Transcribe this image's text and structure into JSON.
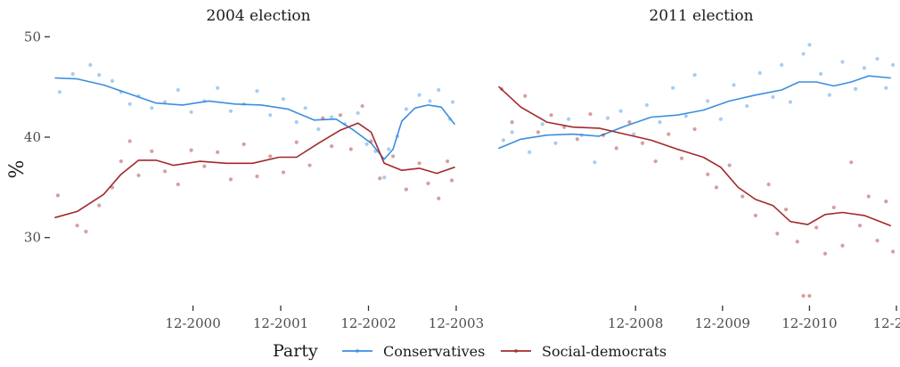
{
  "chart_data": {
    "type": "scatter",
    "ylabel": "%",
    "ylim": [
      23.5,
      51
    ],
    "y_ticks": [
      {
        "label": "50",
        "value": 50
      },
      {
        "label": "40",
        "value": 40
      },
      {
        "label": "30",
        "value": 30
      }
    ],
    "facets": [
      {
        "title": "2004 election",
        "xlim": [
          1999.35,
          2003.9
        ],
        "x_ticks": [
          {
            "label": "12-2000",
            "value": 2000.92
          },
          {
            "label": "12-2001",
            "value": 2001.92
          },
          {
            "label": "12-2002",
            "value": 2002.92
          },
          {
            "label": "12-2003",
            "value": 2003.92
          }
        ],
        "series": [
          {
            "name": "Conservatives",
            "trend": [
              [
                1999.35,
                45.9
              ],
              [
                1999.6,
                45.8
              ],
              [
                1999.9,
                45.2
              ],
              [
                2000.2,
                44.3
              ],
              [
                2000.5,
                43.4
              ],
              [
                2000.8,
                43.2
              ],
              [
                2001.1,
                43.6
              ],
              [
                2001.4,
                43.3
              ],
              [
                2001.7,
                43.2
              ],
              [
                2002.0,
                42.8
              ],
              [
                2002.3,
                41.7
              ],
              [
                2002.55,
                41.8
              ],
              [
                2002.75,
                40.7
              ],
              [
                2002.95,
                39.4
              ],
              [
                2003.1,
                37.8
              ],
              [
                2003.2,
                38.8
              ],
              [
                2003.3,
                41.6
              ],
              [
                2003.45,
                42.9
              ],
              [
                2003.6,
                43.2
              ],
              [
                2003.75,
                43.0
              ],
              [
                2003.9,
                41.3
              ]
            ],
            "points": [
              [
                1999.4,
                44.5
              ],
              [
                1999.55,
                46.3
              ],
              [
                1999.75,
                47.2
              ],
              [
                1999.85,
                46.2
              ],
              [
                2000.0,
                45.6
              ],
              [
                2000.1,
                44.5
              ],
              [
                2000.2,
                43.3
              ],
              [
                2000.3,
                44.1
              ],
              [
                2000.45,
                42.9
              ],
              [
                2000.6,
                43.5
              ],
              [
                2000.75,
                44.7
              ],
              [
                2000.9,
                42.5
              ],
              [
                2001.05,
                43.6
              ],
              [
                2001.2,
                44.9
              ],
              [
                2001.35,
                42.6
              ],
              [
                2001.5,
                43.3
              ],
              [
                2001.65,
                44.6
              ],
              [
                2001.8,
                42.2
              ],
              [
                2001.95,
                43.8
              ],
              [
                2002.1,
                41.5
              ],
              [
                2002.2,
                42.9
              ],
              [
                2002.35,
                40.8
              ],
              [
                2002.5,
                42.0
              ],
              [
                2002.65,
                41.3
              ],
              [
                2002.8,
                42.4
              ],
              [
                2002.9,
                39.3
              ],
              [
                2003.0,
                38.6
              ],
              [
                2003.1,
                36.0
              ],
              [
                2003.15,
                38.8
              ],
              [
                2003.25,
                40.1
              ],
              [
                2003.35,
                42.8
              ],
              [
                2003.5,
                44.2
              ],
              [
                2003.62,
                43.6
              ],
              [
                2003.72,
                44.7
              ],
              [
                2003.85,
                41.8
              ],
              [
                2003.88,
                43.5
              ]
            ]
          },
          {
            "name": "Social-democrats",
            "trend": [
              [
                1999.35,
                32.0
              ],
              [
                1999.6,
                32.6
              ],
              [
                1999.9,
                34.3
              ],
              [
                2000.1,
                36.3
              ],
              [
                2000.3,
                37.7
              ],
              [
                2000.5,
                37.7
              ],
              [
                2000.7,
                37.2
              ],
              [
                2001.0,
                37.6
              ],
              [
                2001.3,
                37.4
              ],
              [
                2001.6,
                37.4
              ],
              [
                2001.9,
                38.0
              ],
              [
                2002.1,
                38.0
              ],
              [
                2002.35,
                39.4
              ],
              [
                2002.6,
                40.7
              ],
              [
                2002.8,
                41.4
              ],
              [
                2002.95,
                40.5
              ],
              [
                2003.1,
                37.4
              ],
              [
                2003.3,
                36.7
              ],
              [
                2003.5,
                36.9
              ],
              [
                2003.7,
                36.4
              ],
              [
                2003.9,
                37.0
              ]
            ],
            "points": [
              [
                1999.38,
                34.2
              ],
              [
                1999.6,
                31.2
              ],
              [
                1999.7,
                30.6
              ],
              [
                1999.85,
                33.2
              ],
              [
                2000.0,
                35.0
              ],
              [
                2000.1,
                37.6
              ],
              [
                2000.2,
                39.6
              ],
              [
                2000.3,
                36.2
              ],
              [
                2000.45,
                38.6
              ],
              [
                2000.6,
                36.6
              ],
              [
                2000.75,
                35.3
              ],
              [
                2000.9,
                38.7
              ],
              [
                2001.05,
                37.1
              ],
              [
                2001.2,
                38.5
              ],
              [
                2001.35,
                35.8
              ],
              [
                2001.5,
                39.3
              ],
              [
                2001.65,
                36.1
              ],
              [
                2001.8,
                38.1
              ],
              [
                2001.95,
                36.5
              ],
              [
                2002.1,
                39.5
              ],
              [
                2002.25,
                37.2
              ],
              [
                2002.4,
                41.9
              ],
              [
                2002.5,
                39.1
              ],
              [
                2002.6,
                42.2
              ],
              [
                2002.72,
                38.8
              ],
              [
                2002.85,
                43.1
              ],
              [
                2002.95,
                39.6
              ],
              [
                2003.05,
                35.9
              ],
              [
                2003.2,
                38.1
              ],
              [
                2003.35,
                34.8
              ],
              [
                2003.5,
                37.4
              ],
              [
                2003.6,
                35.4
              ],
              [
                2003.72,
                33.9
              ],
              [
                2003.82,
                37.6
              ],
              [
                2003.87,
                35.7
              ]
            ]
          }
        ]
      },
      {
        "title": "2011 election",
        "xlim": [
          2007.35,
          2011.92
        ],
        "x_ticks": [
          {
            "label": "12-2008",
            "value": 2008.92
          },
          {
            "label": "12-2009",
            "value": 2009.92
          },
          {
            "label": "12-2010",
            "value": 2010.92
          },
          {
            "label": "12-201",
            "value": 2011.92
          }
        ],
        "series": [
          {
            "name": "Conservatives",
            "trend": [
              [
                2007.35,
                38.9
              ],
              [
                2007.6,
                39.8
              ],
              [
                2007.9,
                40.2
              ],
              [
                2008.2,
                40.3
              ],
              [
                2008.5,
                40.1
              ],
              [
                2008.8,
                41.1
              ],
              [
                2009.1,
                42.0
              ],
              [
                2009.4,
                42.2
              ],
              [
                2009.7,
                42.7
              ],
              [
                2010.0,
                43.6
              ],
              [
                2010.3,
                44.2
              ],
              [
                2010.6,
                44.7
              ],
              [
                2010.8,
                45.5
              ],
              [
                2011.0,
                45.5
              ],
              [
                2011.2,
                45.1
              ],
              [
                2011.4,
                45.5
              ],
              [
                2011.6,
                46.1
              ],
              [
                2011.85,
                45.9
              ]
            ],
            "points": [
              [
                2007.4,
                39.7
              ],
              [
                2007.5,
                40.5
              ],
              [
                2007.7,
                38.5
              ],
              [
                2007.85,
                41.3
              ],
              [
                2008.0,
                39.4
              ],
              [
                2008.15,
                41.8
              ],
              [
                2008.3,
                40.2
              ],
              [
                2008.45,
                37.5
              ],
              [
                2008.6,
                41.9
              ],
              [
                2008.75,
                42.6
              ],
              [
                2008.9,
                40.3
              ],
              [
                2009.05,
                43.2
              ],
              [
                2009.2,
                41.5
              ],
              [
                2009.35,
                44.9
              ],
              [
                2009.5,
                42.1
              ],
              [
                2009.6,
                46.2
              ],
              [
                2009.75,
                43.6
              ],
              [
                2009.9,
                41.8
              ],
              [
                2010.05,
                45.2
              ],
              [
                2010.2,
                43.1
              ],
              [
                2010.35,
                46.4
              ],
              [
                2010.5,
                44.0
              ],
              [
                2010.6,
                47.2
              ],
              [
                2010.7,
                43.5
              ],
              [
                2010.85,
                48.3
              ],
              [
                2010.92,
                49.2
              ],
              [
                2011.05,
                46.3
              ],
              [
                2011.15,
                44.2
              ],
              [
                2011.3,
                47.5
              ],
              [
                2011.45,
                44.8
              ],
              [
                2011.55,
                46.9
              ],
              [
                2011.7,
                47.8
              ],
              [
                2011.8,
                44.9
              ],
              [
                2011.88,
                47.2
              ]
            ]
          },
          {
            "name": "Social-democrats",
            "trend": [
              [
                2007.35,
                45.0
              ],
              [
                2007.6,
                43.0
              ],
              [
                2007.9,
                41.5
              ],
              [
                2008.2,
                41.0
              ],
              [
                2008.5,
                40.9
              ],
              [
                2008.8,
                40.3
              ],
              [
                2009.1,
                39.7
              ],
              [
                2009.4,
                38.8
              ],
              [
                2009.7,
                38.0
              ],
              [
                2009.9,
                37.0
              ],
              [
                2010.1,
                35.0
              ],
              [
                2010.3,
                33.8
              ],
              [
                2010.5,
                33.2
              ],
              [
                2010.7,
                31.6
              ],
              [
                2010.9,
                31.3
              ],
              [
                2011.1,
                32.3
              ],
              [
                2011.3,
                32.5
              ],
              [
                2011.55,
                32.2
              ],
              [
                2011.85,
                31.2
              ]
            ],
            "points": [
              [
                2007.38,
                44.8
              ],
              [
                2007.5,
                41.5
              ],
              [
                2007.65,
                44.1
              ],
              [
                2007.8,
                40.5
              ],
              [
                2007.95,
                42.2
              ],
              [
                2008.1,
                41.0
              ],
              [
                2008.25,
                39.8
              ],
              [
                2008.4,
                42.3
              ],
              [
                2008.55,
                40.2
              ],
              [
                2008.7,
                38.9
              ],
              [
                2008.85,
                41.5
              ],
              [
                2009.0,
                39.4
              ],
              [
                2009.15,
                37.6
              ],
              [
                2009.3,
                40.3
              ],
              [
                2009.45,
                37.9
              ],
              [
                2009.6,
                40.8
              ],
              [
                2009.75,
                36.3
              ],
              [
                2009.85,
                35.0
              ],
              [
                2010.0,
                37.2
              ],
              [
                2010.15,
                34.1
              ],
              [
                2010.3,
                32.2
              ],
              [
                2010.45,
                35.3
              ],
              [
                2010.55,
                30.4
              ],
              [
                2010.65,
                32.8
              ],
              [
                2010.78,
                29.6
              ],
              [
                2010.85,
                24.2
              ],
              [
                2010.92,
                24.2
              ],
              [
                2011.0,
                31.0
              ],
              [
                2011.1,
                28.4
              ],
              [
                2011.2,
                33.0
              ],
              [
                2011.3,
                29.2
              ],
              [
                2011.4,
                37.5
              ],
              [
                2011.5,
                31.2
              ],
              [
                2011.6,
                34.1
              ],
              [
                2011.7,
                29.7
              ],
              [
                2011.8,
                33.6
              ],
              [
                2011.88,
                28.6
              ]
            ]
          }
        ]
      }
    ],
    "colors": {
      "Conservatives": "#3b8ee0",
      "Social-democrats": "#a3282b"
    },
    "legend": {
      "title": "Party",
      "position": "bottom",
      "entries": [
        "Conservatives",
        "Social-democrats"
      ]
    },
    "grid": false
  }
}
